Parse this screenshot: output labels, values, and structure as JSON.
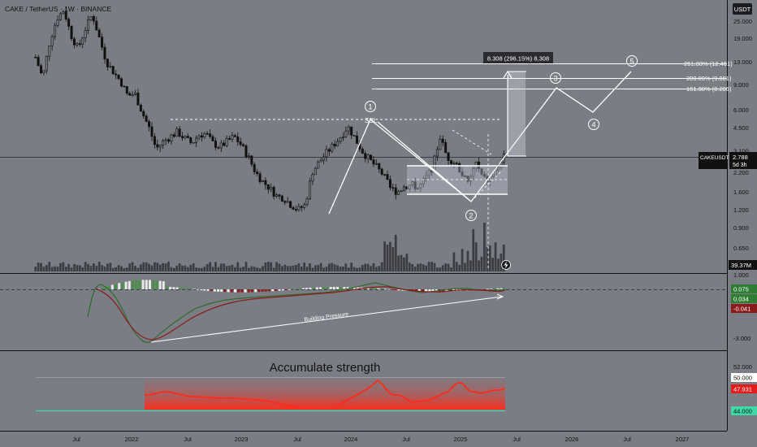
{
  "header": {
    "symbol_title": "CAKE / TetherUS · 1W · BINANCE"
  },
  "colors": {
    "background": "#7b7d84",
    "candle": "#111111",
    "drawing": "#ffffff",
    "accent_green": "#4a8f4a",
    "accent_red": "#8b1a1a",
    "rsi_red": "#ff2a1a",
    "rsi_line": "#3fd9a8"
  },
  "price_axis": {
    "unit_label": "USDT",
    "ticks": [
      "25.000",
      "19.000",
      "13.000",
      "9.000",
      "6.000",
      "4.500",
      "3.100",
      "2.200",
      "1.600",
      "1.200",
      "0.900",
      "0.650"
    ],
    "current_price": {
      "symbol": "CAKEUSDT",
      "value": "2.788",
      "countdown": "5d 3h"
    },
    "volume_badge": "39.37M"
  },
  "time_axis": {
    "labels": [
      "Jul",
      "2022",
      "Jul",
      "2023",
      "Jul",
      "2024",
      "Jul",
      "2025",
      "Jul",
      "2026",
      "Jul",
      "2027"
    ]
  },
  "annotations": {
    "measure_box": "8.308 (296.15%) 8,308",
    "fib_levels": [
      "261.80% (12.461)",
      "200.00% (9.881)",
      "161.80% (8.286)"
    ],
    "ssl_label": "SSL",
    "waves": [
      "1",
      "2",
      "3",
      "4",
      "5"
    ],
    "lightning_icon": "lightning-icon"
  },
  "macd_panel": {
    "axis_ticks": [
      "1.000",
      "-3.000"
    ],
    "values": [
      {
        "text": "0.075",
        "color": "#2f7d32"
      },
      {
        "text": "0.034",
        "color": "#2f7d32"
      },
      {
        "text": "-0.041",
        "color": "#8b1a1a"
      }
    ],
    "trend_label": "Building Pressure"
  },
  "rsi_panel": {
    "title": "Accumulate strength",
    "axis_ticks": [
      "52.000"
    ],
    "values": [
      {
        "text": "50.000",
        "bg": "#ffffff",
        "fg": "#111111"
      },
      {
        "text": "47.931",
        "bg": "#e31b1b",
        "fg": "#ffffff"
      },
      {
        "text": "44.000",
        "bg": "#3fd9a8",
        "fg": "#111111"
      }
    ]
  },
  "chart_data": [
    {
      "type": "line",
      "title": "CAKE / TetherUS · 1W · BINANCE",
      "scale": "log",
      "ylim": [
        0.5,
        32
      ],
      "x_labels": [
        "Jul",
        "2022",
        "Jul",
        "2023",
        "Jul",
        "2024",
        "Jul",
        "2025",
        "Jul",
        "2026",
        "Jul",
        "2027"
      ],
      "series": [
        {
          "values": [
            14,
            10,
            18,
            26,
            30,
            20,
            16,
            22,
            28,
            19,
            13,
            11,
            9.5,
            7.5,
            7.8,
            5.8,
            4.5,
            3.2,
            3.6,
            3.9,
            4.2,
            3.8,
            3.5,
            4.0,
            4.1,
            3.5,
            3.3,
            3.6,
            3.9,
            3.4,
            2.8,
            2.2,
            1.9,
            1.7,
            1.5,
            1.45,
            1.3,
            1.2,
            1.3,
            2.2,
            2.6,
            3.0,
            3.4,
            3.9,
            4.6,
            3.8,
            3.1,
            2.7,
            2.4,
            2.1,
            1.7,
            1.6,
            1.75,
            1.8,
            1.7,
            2.0,
            2.4,
            3.9,
            2.8,
            2.6,
            2.2,
            1.8,
            2.6,
            2.0,
            1.9,
            2.3,
            2.8
          ]
        }
      ]
    }
  ]
}
